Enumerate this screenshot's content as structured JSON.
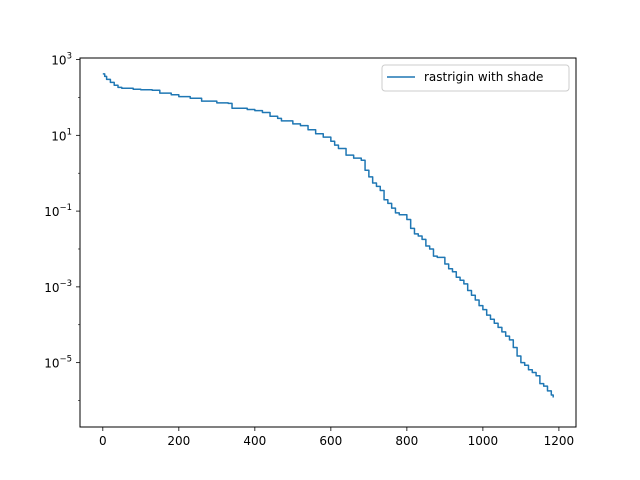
{
  "chart_data": {
    "type": "line",
    "title": "",
    "xlabel": "",
    "ylabel": "",
    "xlim": [
      -60,
      1245
    ],
    "ylim": [
      2e-07,
      1100
    ],
    "yscale": "log",
    "grid": false,
    "legend_position": "top-right",
    "x_ticks": [
      {
        "value": 0,
        "label": "0"
      },
      {
        "value": 200,
        "label": "200"
      },
      {
        "value": 400,
        "label": "400"
      },
      {
        "value": 600,
        "label": "600"
      },
      {
        "value": 800,
        "label": "800"
      },
      {
        "value": 1000,
        "label": "1000"
      },
      {
        "value": 1200,
        "label": "1200"
      }
    ],
    "y_ticks": [
      {
        "value": 1000,
        "base": "10",
        "exp": "3"
      },
      {
        "value": 10,
        "base": "10",
        "exp": "1"
      },
      {
        "value": 0.1,
        "base": "10",
        "exp": "−1"
      },
      {
        "value": 0.001,
        "base": "10",
        "exp": "−3"
      },
      {
        "value": 1e-05,
        "base": "10",
        "exp": "−5"
      }
    ],
    "series": [
      {
        "name": "rastrigin with shade",
        "color": "#1f77b4",
        "points": [
          [
            0,
            420
          ],
          [
            5,
            360
          ],
          [
            10,
            300
          ],
          [
            20,
            250
          ],
          [
            30,
            210
          ],
          [
            40,
            185
          ],
          [
            50,
            175
          ],
          [
            80,
            165
          ],
          [
            100,
            160
          ],
          [
            130,
            155
          ],
          [
            150,
            130
          ],
          [
            180,
            118
          ],
          [
            200,
            105
          ],
          [
            230,
            95
          ],
          [
            260,
            80
          ],
          [
            300,
            72
          ],
          [
            330,
            70
          ],
          [
            340,
            52
          ],
          [
            380,
            48
          ],
          [
            400,
            45
          ],
          [
            420,
            40
          ],
          [
            440,
            32
          ],
          [
            460,
            28
          ],
          [
            470,
            24
          ],
          [
            500,
            20
          ],
          [
            520,
            18
          ],
          [
            540,
            14
          ],
          [
            560,
            11
          ],
          [
            580,
            9
          ],
          [
            600,
            7
          ],
          [
            610,
            5.5
          ],
          [
            620,
            4.5
          ],
          [
            640,
            3.0
          ],
          [
            660,
            2.5
          ],
          [
            680,
            2.2
          ],
          [
            690,
            1.2
          ],
          [
            700,
            0.8
          ],
          [
            710,
            0.55
          ],
          [
            720,
            0.45
          ],
          [
            730,
            0.35
          ],
          [
            740,
            0.2
          ],
          [
            750,
            0.16
          ],
          [
            760,
            0.12
          ],
          [
            770,
            0.09
          ],
          [
            780,
            0.08
          ],
          [
            800,
            0.06
          ],
          [
            810,
            0.035
          ],
          [
            820,
            0.025
          ],
          [
            830,
            0.022
          ],
          [
            840,
            0.018
          ],
          [
            850,
            0.012
          ],
          [
            860,
            0.01
          ],
          [
            870,
            0.0065
          ],
          [
            880,
            0.006
          ],
          [
            900,
            0.004
          ],
          [
            910,
            0.003
          ],
          [
            920,
            0.0025
          ],
          [
            930,
            0.0018
          ],
          [
            940,
            0.0015
          ],
          [
            950,
            0.0012
          ],
          [
            960,
            0.0008
          ],
          [
            970,
            0.0006
          ],
          [
            980,
            0.00045
          ],
          [
            990,
            0.00032
          ],
          [
            1000,
            0.00025
          ],
          [
            1010,
            0.00018
          ],
          [
            1020,
            0.00014
          ],
          [
            1030,
            0.00011
          ],
          [
            1040,
            8.5e-05
          ],
          [
            1050,
            6.5e-05
          ],
          [
            1060,
            5e-05
          ],
          [
            1070,
            4e-05
          ],
          [
            1080,
            2.5e-05
          ],
          [
            1090,
            1.5e-05
          ],
          [
            1100,
            1e-05
          ],
          [
            1110,
            8.5e-06
          ],
          [
            1120,
            6.5e-06
          ],
          [
            1130,
            5.5e-06
          ],
          [
            1140,
            4.5e-06
          ],
          [
            1150,
            2.8e-06
          ],
          [
            1160,
            2.4e-06
          ],
          [
            1170,
            1.8e-06
          ],
          [
            1180,
            1.4e-06
          ],
          [
            1185,
            1.2e-06
          ]
        ]
      }
    ]
  }
}
